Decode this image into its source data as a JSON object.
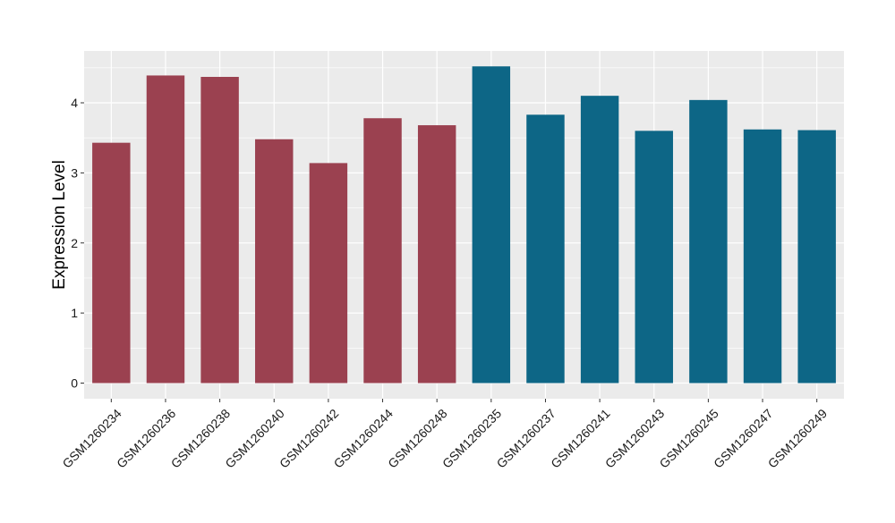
{
  "chart_data": {
    "type": "bar",
    "title": "",
    "xlabel": "",
    "ylabel": "Expression Level",
    "ylim": [
      0,
      4.65
    ],
    "yticks": [
      0,
      1,
      2,
      3,
      4
    ],
    "grid": true,
    "legend": "none",
    "colors": {
      "group_a": "#9b4150",
      "group_b": "#0d6686",
      "panel_bg": "#ebebeb",
      "grid": "#ffffff",
      "tick": "#333333"
    },
    "categories": [
      "GSM1260234",
      "GSM1260236",
      "GSM1260238",
      "GSM1260240",
      "GSM1260242",
      "GSM1260244",
      "GSM1260248",
      "GSM1260235",
      "GSM1260237",
      "GSM1260241",
      "GSM1260243",
      "GSM1260245",
      "GSM1260247",
      "GSM1260249"
    ],
    "values": [
      3.43,
      4.39,
      4.37,
      3.48,
      3.14,
      3.78,
      3.68,
      4.52,
      3.83,
      4.1,
      3.6,
      4.04,
      3.62,
      3.61
    ],
    "bar_groups": [
      "group_a",
      "group_a",
      "group_a",
      "group_a",
      "group_a",
      "group_a",
      "group_a",
      "group_b",
      "group_b",
      "group_b",
      "group_b",
      "group_b",
      "group_b",
      "group_b"
    ]
  }
}
